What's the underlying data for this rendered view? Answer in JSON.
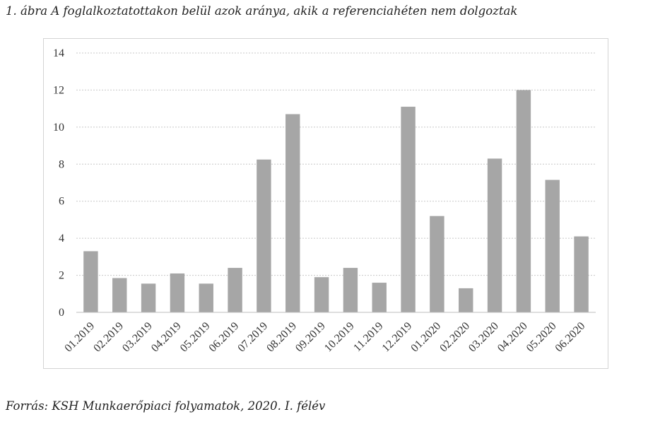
{
  "figure": {
    "title": "1. ábra A foglalkoztatottakon belül azok aránya, akik a referenciahéten nem dolgoztak",
    "source": "Forrás: KSH Munkaerőpiaci folyamatok, 2020. I. félév"
  },
  "chart_data": {
    "type": "bar",
    "title": "1. ábra A foglalkoztatottakon belül azok aránya, akik a referenciahéten nem dolgoztak",
    "xlabel": "",
    "ylabel": "",
    "ylim": [
      0,
      14
    ],
    "yticks": [
      0,
      2,
      4,
      6,
      8,
      10,
      12,
      14
    ],
    "grid": true,
    "legend": "none",
    "bar_color": "#a6a6a6",
    "grid_color": "#c8c8c8",
    "categories": [
      "01.2019",
      "02.2019",
      "03.2019",
      "04.2019",
      "05.2019",
      "06.2019",
      "07.2019",
      "08.2019",
      "09.2019",
      "10.2019",
      "11.2019",
      "12.2019",
      "01.2020",
      "02.2020",
      "03.2020",
      "04.2020",
      "05.2020",
      "06.2020"
    ],
    "values": [
      3.3,
      1.85,
      1.55,
      2.1,
      1.55,
      2.4,
      8.25,
      10.7,
      1.9,
      2.4,
      1.6,
      11.1,
      5.2,
      1.3,
      8.3,
      12.0,
      7.15,
      4.1
    ]
  }
}
